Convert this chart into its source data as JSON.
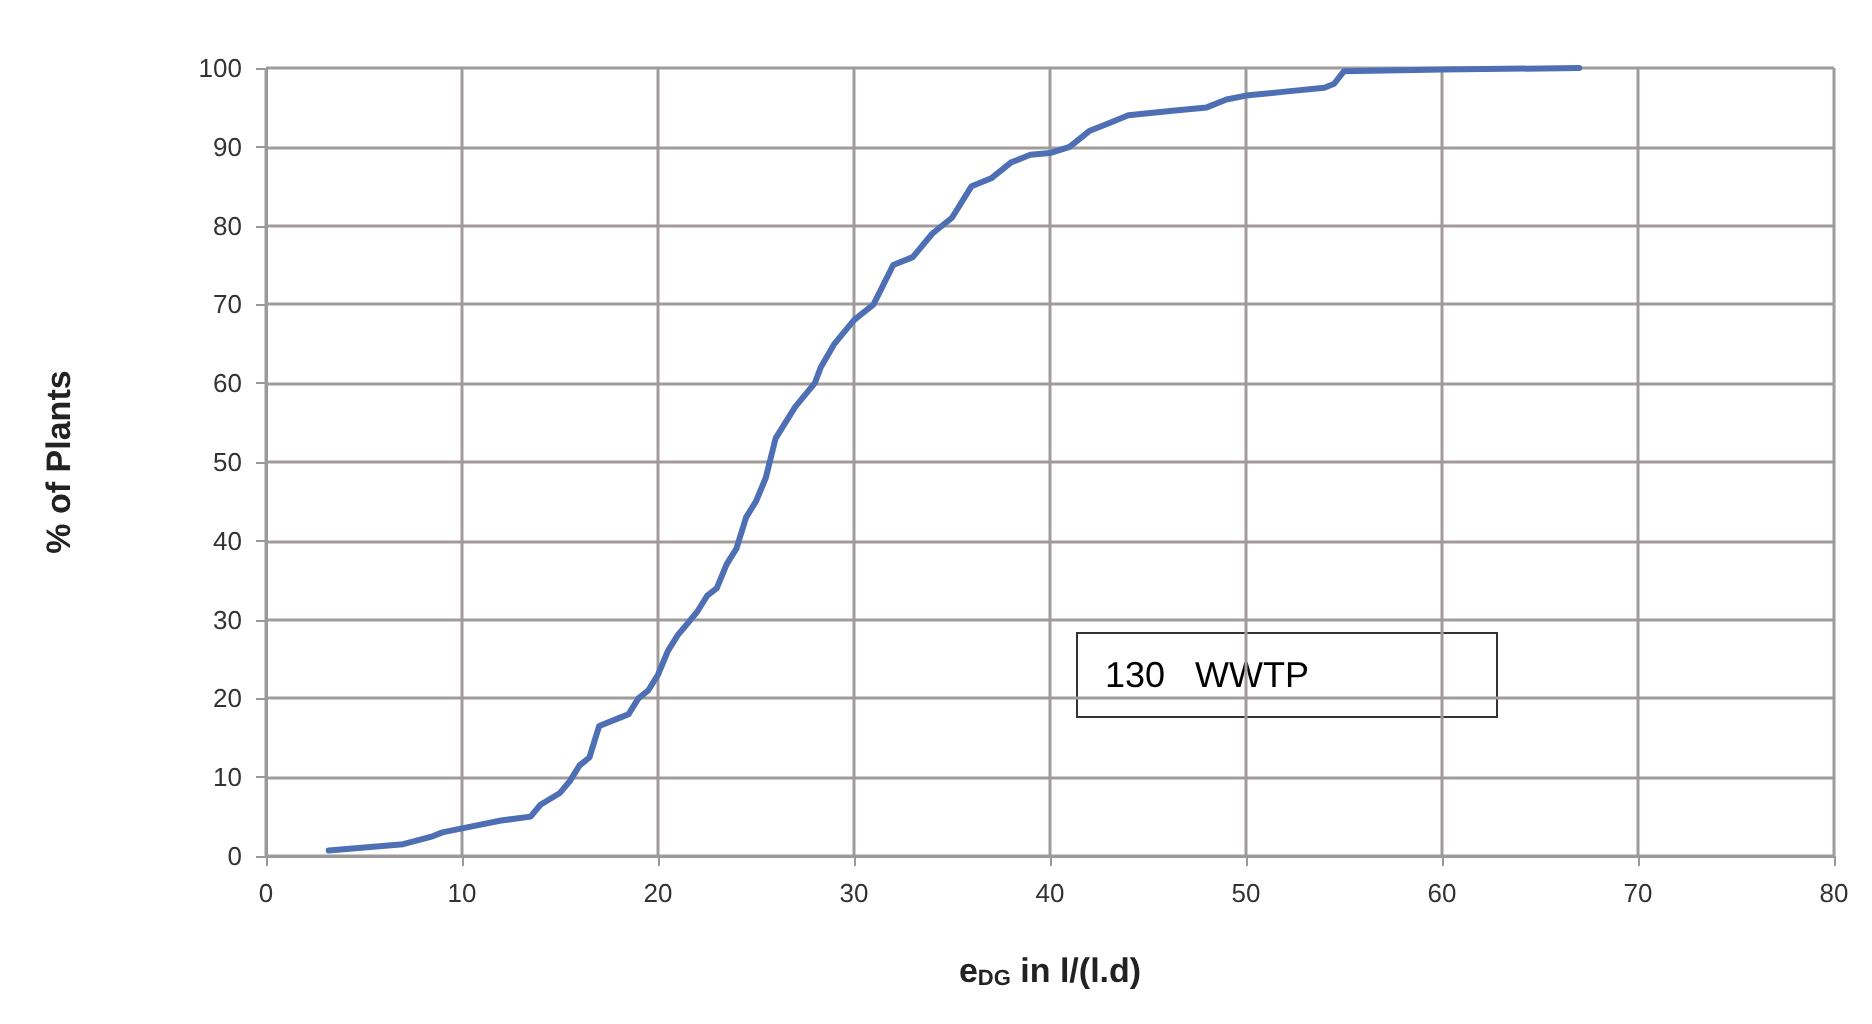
{
  "chart_data": {
    "type": "line",
    "xlabel": "e$_{DG}$ in l/(l.d)",
    "ylabel": "% of Plants",
    "annotations": [
      "130   WWTP"
    ],
    "x": [
      3.2,
      7,
      8.5,
      9,
      10,
      12,
      13.5,
      14,
      15,
      15.5,
      16,
      16.5,
      17,
      18,
      18.5,
      19,
      19.5,
      20,
      20.5,
      21,
      21.5,
      22,
      22.5,
      23,
      23.5,
      24,
      24.5,
      25,
      25.5,
      26,
      26.5,
      27,
      28,
      28.3,
      29,
      30,
      31,
      32,
      33,
      34,
      35,
      36,
      37,
      38,
      39,
      40,
      41,
      42,
      43,
      44,
      46,
      48,
      49,
      50,
      52,
      54,
      54.5,
      55,
      60,
      67
    ],
    "series": [
      {
        "color": "#4f6fb5",
        "values": [
          0.7,
          1.5,
          2.5,
          3,
          3.5,
          4.5,
          5,
          6.5,
          8,
          9.5,
          11.5,
          12.5,
          16.5,
          17.5,
          18,
          20,
          21,
          23,
          26,
          28,
          29.5,
          31,
          33,
          34,
          37,
          39,
          43,
          45,
          48,
          53,
          55,
          57,
          60,
          62,
          65,
          68,
          70,
          75,
          76,
          79,
          81,
          85,
          86,
          88,
          89,
          89.2,
          90,
          92,
          93,
          94,
          94.5,
          95,
          96,
          96.5,
          97,
          97.5,
          98,
          99.6,
          99.8,
          100
        ]
      }
    ],
    "xlim": [
      0,
      80
    ],
    "xticks": [
      0,
      10,
      20,
      30,
      40,
      50,
      60,
      70,
      80
    ],
    "ylim": [
      0,
      100
    ],
    "yticks": [
      0,
      10,
      20,
      30,
      40,
      50,
      60,
      70,
      80,
      90,
      100
    ],
    "grid": true,
    "marker": "none",
    "line_style": "solid"
  }
}
